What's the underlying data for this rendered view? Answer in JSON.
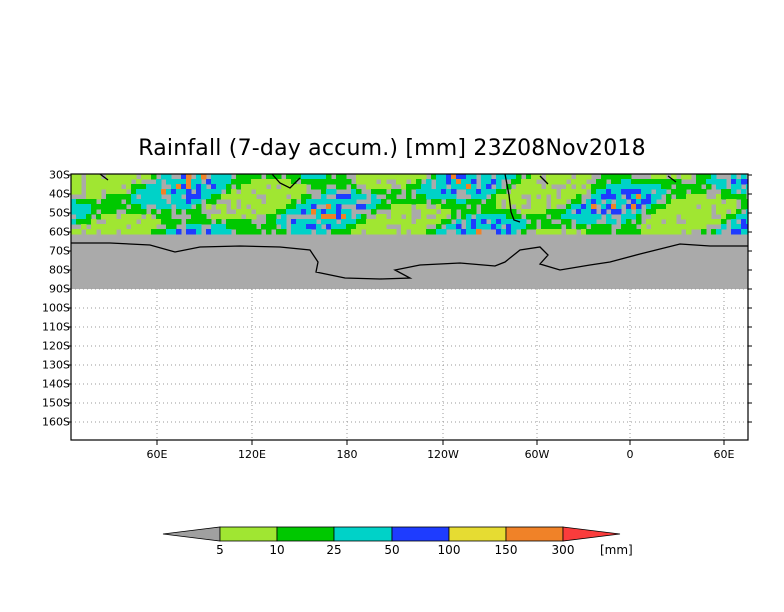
{
  "title": "Rainfall (7-day accum.) [mm] 23Z08Nov2018",
  "lat_labels": [
    "30S",
    "40S",
    "50S",
    "60S",
    "70S",
    "80S",
    "90S",
    "100S",
    "110S",
    "120S",
    "130S",
    "140S",
    "150S",
    "160S"
  ],
  "lon_labels": [
    "60E",
    "120E",
    "180",
    "120W",
    "60W",
    "0",
    "60E"
  ],
  "colorbar": {
    "unit": "[mm]",
    "labels": [
      "5",
      "10",
      "25",
      "50",
      "100",
      "150",
      "300"
    ],
    "colors": [
      "#a0a0a0",
      "#a0e632",
      "#00c800",
      "#00d2c8",
      "#1e3cff",
      "#e6dc32",
      "#f08228",
      "#fa3c3c"
    ]
  },
  "colors": {
    "no_data": "#aaaaaa",
    "coast": "#000000",
    "grid": "#9a9a9a"
  }
}
